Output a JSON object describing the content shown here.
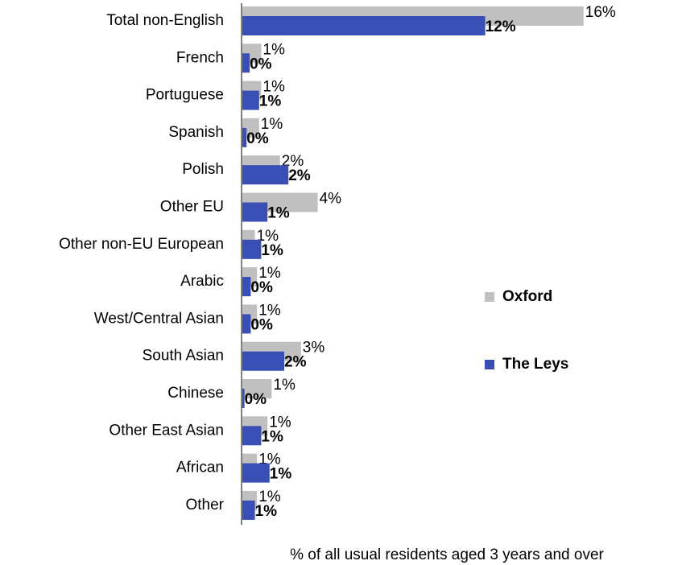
{
  "chart_data": {
    "type": "bar",
    "orientation": "horizontal",
    "x_label": "% of all usual residents aged 3 years and over",
    "categories": [
      "Total non-English",
      "French",
      "Portuguese",
      "Spanish",
      "Polish",
      "Other EU",
      "Other non-EU European",
      "Arabic",
      "West/Central Asian",
      "South Asian",
      "Chinese",
      "Other East Asian",
      "African",
      "Other"
    ],
    "series": [
      {
        "name": "Oxford",
        "color": "#c0c0c0",
        "values": [
          16.3,
          0.9,
          0.9,
          0.8,
          1.8,
          3.6,
          0.6,
          0.7,
          0.7,
          2.8,
          1.4,
          1.2,
          0.7,
          0.7
        ],
        "value_labels": [
          "16%",
          "1%",
          "1%",
          "1%",
          "2%",
          "4%",
          "1%",
          "1%",
          "1%",
          "3%",
          "1%",
          "1%",
          "1%",
          "1%"
        ]
      },
      {
        "name": "The Leys",
        "color": "#3a4fb5",
        "values": [
          11.6,
          0.35,
          0.8,
          0.2,
          2.2,
          1.2,
          0.9,
          0.4,
          0.4,
          2.0,
          0.1,
          0.9,
          1.3,
          0.6
        ],
        "value_labels": [
          "12%",
          "0%",
          "1%",
          "0%",
          "2%",
          "1%",
          "1%",
          "0%",
          "0%",
          "2%",
          "0%",
          "1%",
          "1%",
          "1%"
        ]
      }
    ],
    "legend": "right"
  }
}
